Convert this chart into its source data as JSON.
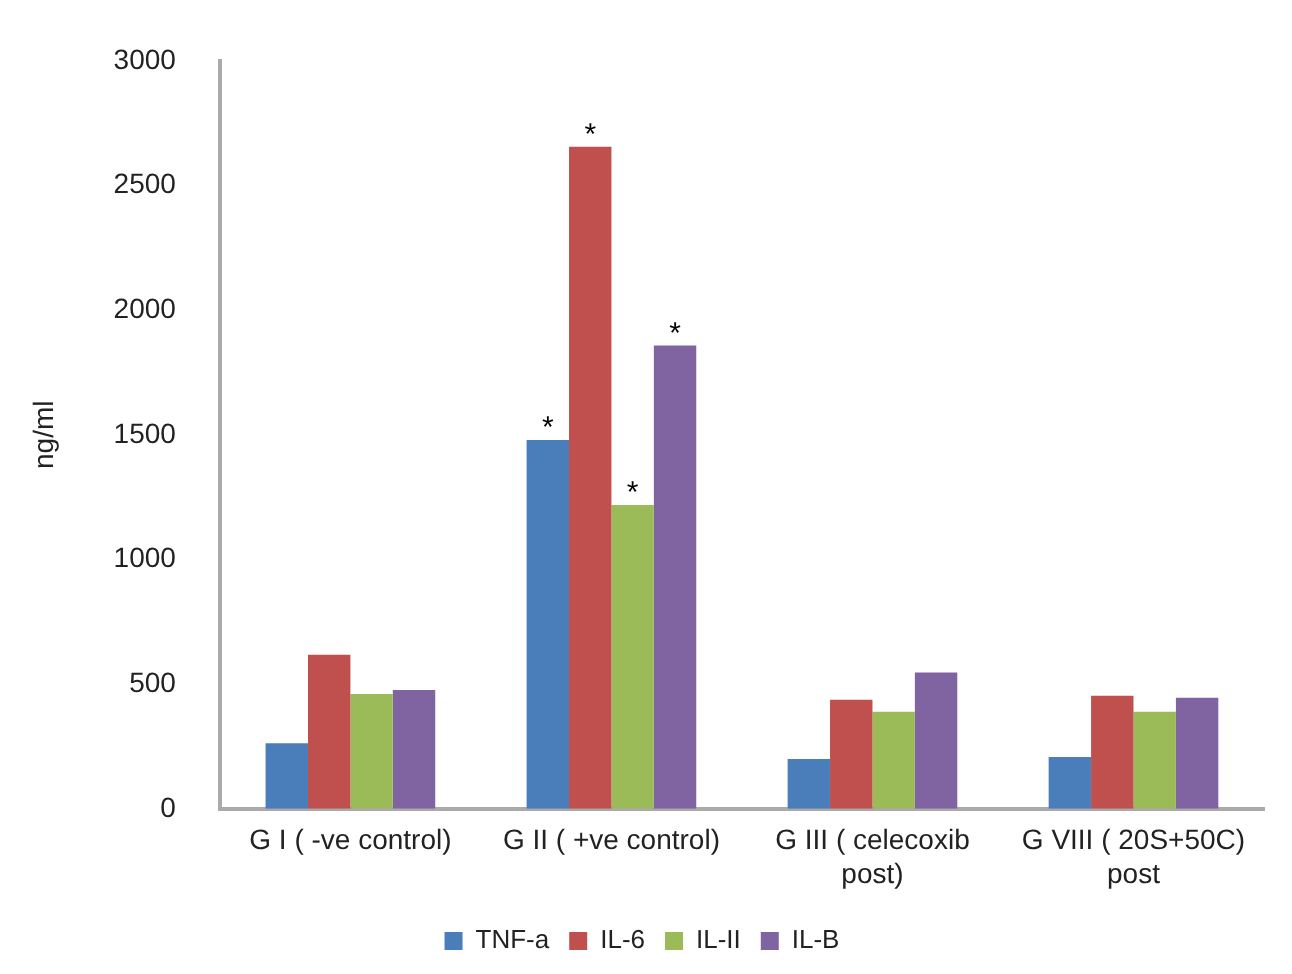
{
  "chart_data": {
    "type": "bar",
    "ylabel": "ng/ml",
    "categories": [
      "G I ( -ve control)",
      "G II ( +ve control)",
      "G III ( celecoxib\npost)",
      "G VIII ( 20S+50C)\npost"
    ],
    "series": [
      {
        "name": "TNF-a",
        "color": "#4a7ebb",
        "values": [
          263,
          1479,
          200,
          208
        ]
      },
      {
        "name": "IL-6",
        "color": "#c0504d",
        "values": [
          618,
          2655,
          437,
          453
        ]
      },
      {
        "name": "IL-II",
        "color": "#9bbb59",
        "values": [
          460,
          1218,
          389,
          389
        ]
      },
      {
        "name": "IL-B",
        "color": "#8064a2",
        "values": [
          476,
          1858,
          547,
          445
        ]
      }
    ],
    "ylim": [
      0,
      3000
    ],
    "yticks": [
      0,
      500,
      1000,
      1500,
      2000,
      2500,
      3000
    ],
    "grid": false,
    "legend": "bottom",
    "annotations": [
      {
        "text": "*",
        "x": "G II ( +ve control)",
        "y": 1479
      },
      {
        "text": "*",
        "x": "G II ( +ve control)",
        "y": 2655
      },
      {
        "text": "*",
        "x": "G II ( +ve control)",
        "y": 1218
      },
      {
        "text": "*",
        "x": "G II ( +ve control)",
        "y": 1858
      }
    ]
  }
}
